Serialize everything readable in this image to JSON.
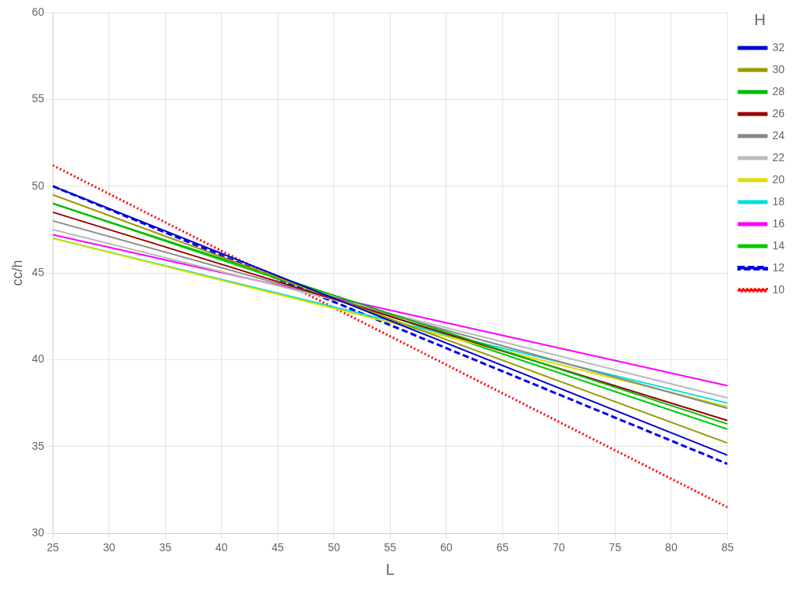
{
  "chart_data": {
    "type": "line",
    "xlabel": "L",
    "ylabel": "cc/h",
    "legend_title": "H",
    "x": [
      25,
      85
    ],
    "series": [
      {
        "name": "32",
        "color": "#0000CC",
        "line_style": "solid",
        "values": [
          50.0,
          34.5
        ]
      },
      {
        "name": "30",
        "color": "#999900",
        "line_style": "solid",
        "values": [
          49.5,
          35.2
        ]
      },
      {
        "name": "28",
        "color": "#00BB00",
        "line_style": "solid",
        "values": [
          49.0,
          36.3
        ]
      },
      {
        "name": "26",
        "color": "#990000",
        "line_style": "solid",
        "values": [
          48.5,
          36.5
        ]
      },
      {
        "name": "24",
        "color": "#888888",
        "line_style": "solid",
        "values": [
          48.0,
          37.2
        ]
      },
      {
        "name": "22",
        "color": "#BBBBBB",
        "line_style": "solid",
        "values": [
          47.5,
          37.8
        ]
      },
      {
        "name": "20",
        "color": "#DDDD00",
        "line_style": "solid",
        "values": [
          47.0,
          37.3
        ]
      },
      {
        "name": "18",
        "color": "#00DDDD",
        "line_style": "solid",
        "values": [
          47.0,
          37.5
        ]
      },
      {
        "name": "16",
        "color": "#FF00FF",
        "line_style": "solid",
        "values": [
          47.2,
          38.5
        ]
      },
      {
        "name": "14",
        "color": "#00CC00",
        "line_style": "solid",
        "values": [
          49.0,
          36.0
        ]
      },
      {
        "name": "12",
        "color": "#0000EE",
        "line_style": "dashed",
        "values": [
          50.0,
          34.0
        ]
      },
      {
        "name": "10",
        "color": "#FF0000",
        "line_style": "dotted",
        "values": [
          51.2,
          31.5
        ]
      }
    ],
    "xlim": [
      25,
      85
    ],
    "xticks": [
      25,
      30,
      35,
      40,
      45,
      50,
      55,
      60,
      65,
      70,
      75,
      80,
      85
    ],
    "ylim": [
      30,
      60
    ],
    "yticks": [
      30,
      35,
      40,
      45,
      50,
      55,
      60
    ],
    "grid": true,
    "legend": "right"
  }
}
